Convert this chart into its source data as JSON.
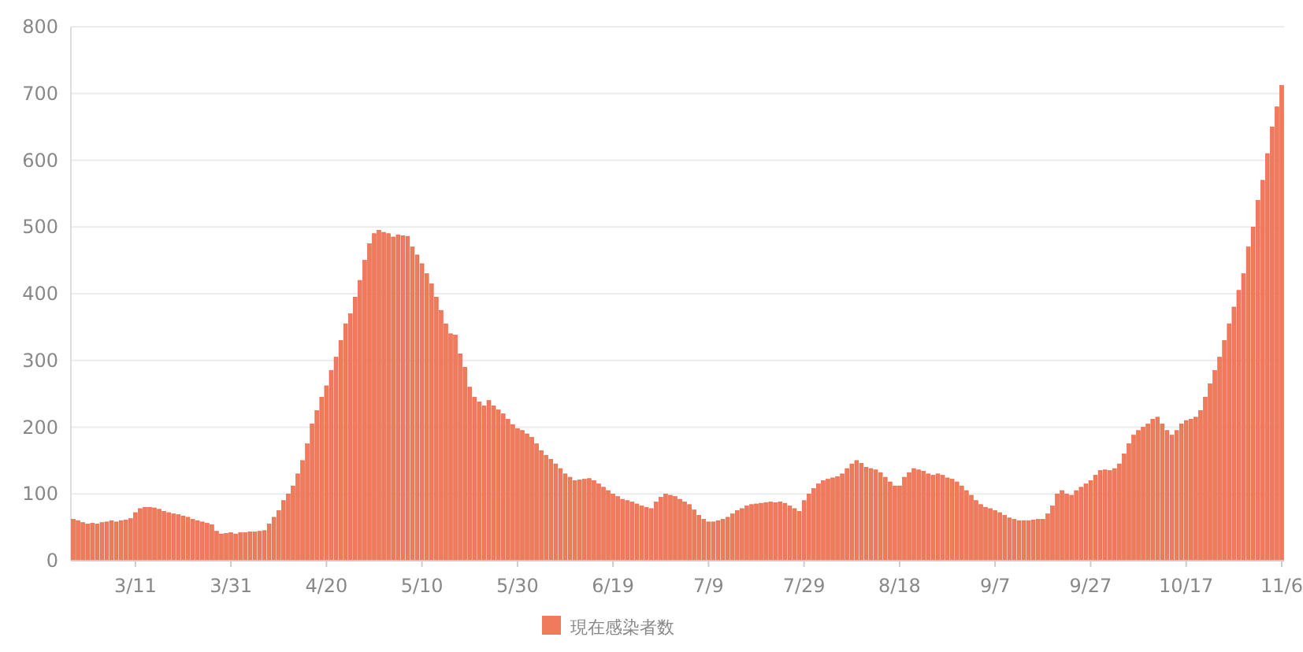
{
  "chart_data": {
    "type": "bar",
    "categories": [
      null,
      null,
      null,
      null,
      null,
      null,
      null,
      null,
      null,
      null,
      null,
      null,
      null,
      "3/11",
      null,
      null,
      null,
      null,
      null,
      null,
      null,
      null,
      null,
      null,
      null,
      null,
      null,
      null,
      null,
      null,
      null,
      null,
      null,
      "3/31",
      null,
      null,
      null,
      null,
      null,
      null,
      null,
      null,
      null,
      null,
      null,
      null,
      null,
      null,
      null,
      null,
      null,
      null,
      null,
      "4/20",
      null,
      null,
      null,
      null,
      null,
      null,
      null,
      null,
      null,
      null,
      null,
      null,
      null,
      null,
      null,
      null,
      null,
      null,
      null,
      "5/10",
      null,
      null,
      null,
      null,
      null,
      null,
      null,
      null,
      null,
      null,
      null,
      null,
      null,
      null,
      null,
      null,
      null,
      null,
      null,
      "5/30",
      null,
      null,
      null,
      null,
      null,
      null,
      null,
      null,
      null,
      null,
      null,
      null,
      null,
      null,
      null,
      null,
      null,
      null,
      null,
      "6/19",
      null,
      null,
      null,
      null,
      null,
      null,
      null,
      null,
      null,
      null,
      null,
      null,
      null,
      null,
      null,
      null,
      null,
      null,
      null,
      "7/9",
      null,
      null,
      null,
      null,
      null,
      null,
      null,
      null,
      null,
      null,
      null,
      null,
      null,
      null,
      null,
      null,
      null,
      null,
      null,
      "7/29",
      null,
      null,
      null,
      null,
      null,
      null,
      null,
      null,
      null,
      null,
      null,
      null,
      null,
      null,
      null,
      null,
      null,
      null,
      null,
      "8/18",
      null,
      null,
      null,
      null,
      null,
      null,
      null,
      null,
      null,
      null,
      null,
      null,
      null,
      null,
      null,
      null,
      null,
      null,
      null,
      "9/7",
      null,
      null,
      null,
      null,
      null,
      null,
      null,
      null,
      null,
      null,
      null,
      null,
      null,
      null,
      null,
      null,
      null,
      null,
      null,
      "9/27",
      null,
      null,
      null,
      null,
      null,
      null,
      null,
      null,
      null,
      null,
      null,
      null,
      null,
      null,
      null,
      null,
      null,
      null,
      null,
      "10/17",
      null,
      null,
      null,
      null,
      null,
      null,
      null,
      null,
      null,
      null,
      null,
      null,
      null,
      null,
      null,
      null,
      null,
      null,
      null,
      "11/6"
    ],
    "series": [
      {
        "name": "現在感染者数",
        "color": "#f07a5c",
        "values": [
          62,
          60,
          57,
          55,
          56,
          55,
          57,
          58,
          60,
          58,
          60,
          61,
          63,
          72,
          78,
          80,
          80,
          79,
          77,
          74,
          72,
          70,
          69,
          67,
          65,
          62,
          60,
          58,
          56,
          54,
          44,
          40,
          41,
          42,
          40,
          42,
          42,
          43,
          43,
          44,
          45,
          55,
          65,
          75,
          90,
          100,
          112,
          130,
          150,
          175,
          205,
          225,
          245,
          262,
          285,
          305,
          330,
          355,
          370,
          395,
          420,
          450,
          475,
          490,
          495,
          492,
          490,
          485,
          488,
          487,
          486,
          470,
          458,
          445,
          430,
          415,
          395,
          375,
          355,
          340,
          338,
          310,
          290,
          260,
          245,
          238,
          232,
          240,
          232,
          226,
          220,
          212,
          204,
          198,
          195,
          190,
          185,
          175,
          165,
          158,
          152,
          145,
          138,
          130,
          125,
          120,
          121,
          122,
          123,
          120,
          115,
          110,
          105,
          100,
          96,
          92,
          90,
          88,
          85,
          82,
          80,
          78,
          88,
          95,
          100,
          98,
          96,
          92,
          88,
          84,
          76,
          68,
          62,
          58,
          58,
          60,
          62,
          65,
          70,
          75,
          78,
          82,
          84,
          85,
          86,
          87,
          88,
          87,
          88,
          86,
          82,
          78,
          74,
          90,
          100,
          108,
          115,
          120,
          122,
          124,
          126,
          130,
          138,
          145,
          150,
          146,
          140,
          138,
          136,
          132,
          125,
          118,
          112,
          112,
          125,
          132,
          138,
          136,
          134,
          130,
          128,
          130,
          128,
          124,
          122,
          118,
          112,
          105,
          98,
          90,
          84,
          80,
          78,
          75,
          72,
          68,
          64,
          62,
          60,
          60,
          60,
          61,
          62,
          62,
          70,
          82,
          100,
          105,
          100,
          98,
          105,
          110,
          115,
          120,
          128,
          135,
          136,
          135,
          138,
          145,
          160,
          175,
          188,
          195,
          200,
          205,
          212,
          215,
          205,
          195,
          188,
          195,
          205,
          210,
          212,
          215,
          225,
          245,
          265,
          285,
          305,
          330,
          355,
          380,
          405,
          430,
          470,
          500,
          540,
          570,
          610,
          650,
          680,
          712
        ]
      }
    ],
    "ylim": [
      0,
      800
    ],
    "yticks": [
      0,
      100,
      200,
      300,
      400,
      500,
      600,
      700,
      800
    ],
    "grid": "y",
    "legend": "bottom"
  }
}
